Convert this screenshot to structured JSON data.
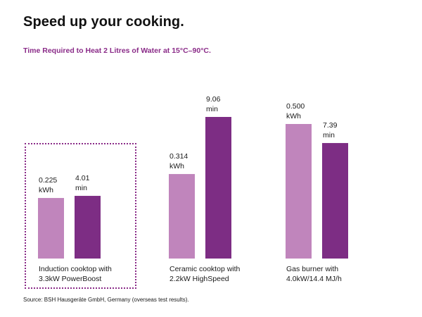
{
  "headline": "Speed up your cooking.",
  "source": "Source: BSH Hausgeräte GmbH, Germany (overseas test results).",
  "colors": {
    "energy_bar": "#c085bc",
    "time_bar": "#7d2d84",
    "subtitle": "#8a2b88",
    "highlight_border": "#8a2b88"
  },
  "chart_data": {
    "type": "bar",
    "title": "Time Required to Heat 2 Litres of Water at 15°C–90°C.",
    "highlighted_group": 0,
    "groups": [
      {
        "label": [
          "Induction cooktop with",
          "3.3kW PowerBoost"
        ],
        "bars": [
          {
            "metric": "energy",
            "value": 0.225,
            "unit": "kWh",
            "label": [
              "0.225",
              "kWh"
            ]
          },
          {
            "metric": "time",
            "value": 4.01,
            "unit": "min",
            "label": [
              "4.01",
              "min"
            ]
          }
        ]
      },
      {
        "label": [
          "Ceramic cooktop with",
          "2.2kW HighSpeed"
        ],
        "bars": [
          {
            "metric": "energy",
            "value": 0.314,
            "unit": "kWh",
            "label": [
              "0.314",
              "kWh"
            ]
          },
          {
            "metric": "time",
            "value": 9.06,
            "unit": "min",
            "label": [
              "9.06",
              "min"
            ]
          }
        ]
      },
      {
        "label": [
          "Gas burner with",
          "4.0kW/14.4 MJ/h"
        ],
        "bars": [
          {
            "metric": "energy",
            "value": 0.5,
            "unit": "kWh",
            "label": [
              "0.500",
              "kWh"
            ]
          },
          {
            "metric": "time",
            "value": 7.39,
            "unit": "min",
            "label": [
              "7.39",
              "min"
            ]
          }
        ]
      }
    ]
  }
}
